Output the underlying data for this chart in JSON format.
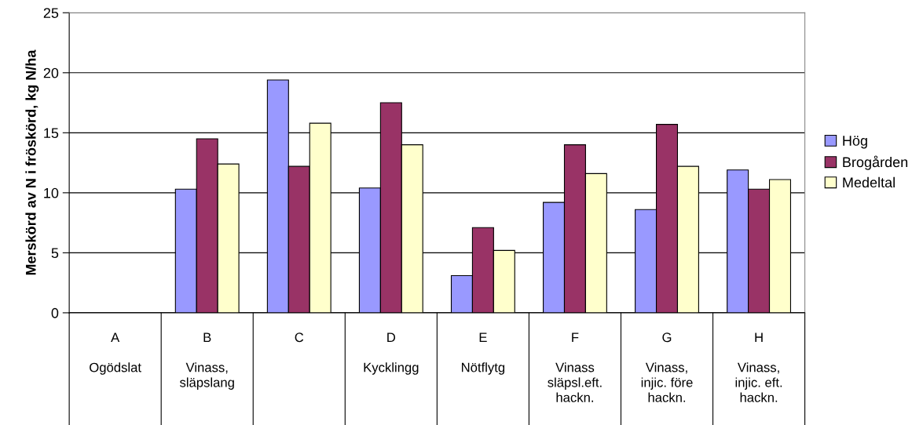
{
  "chart_data": {
    "type": "bar",
    "ylabel": "Merskörd av N i fröskörd, kg N/ha",
    "categories": [
      "A\n\nOgödslat",
      "B\n\nVinass,\nsläpslang",
      "C",
      "D\n\nKycklingg",
      "E\n\nNötflytg",
      "F\n\nVinass\nsläpsl.eft.\nhackn.",
      "G\n\nVinass,\ninjic. före\nhackn.",
      "H\n\nVinass,\ninjic. eft.\nhackn."
    ],
    "series": [
      {
        "name": "Hög",
        "color": "#9999ff",
        "values": [
          null,
          10.3,
          19.4,
          10.4,
          3.1,
          9.2,
          8.6,
          11.9
        ]
      },
      {
        "name": "Brogården",
        "color": "#993366",
        "values": [
          null,
          14.5,
          12.2,
          17.5,
          7.1,
          14.0,
          15.7,
          10.3
        ]
      },
      {
        "name": "Medeltal",
        "color": "#ffffcc",
        "values": [
          null,
          12.4,
          15.8,
          14.0,
          5.2,
          11.6,
          12.2,
          11.1
        ]
      }
    ],
    "ylim": [
      0,
      25
    ],
    "yticks": [
      0,
      5,
      10,
      15,
      20,
      25
    ],
    "grid": "y",
    "legend": "right"
  }
}
